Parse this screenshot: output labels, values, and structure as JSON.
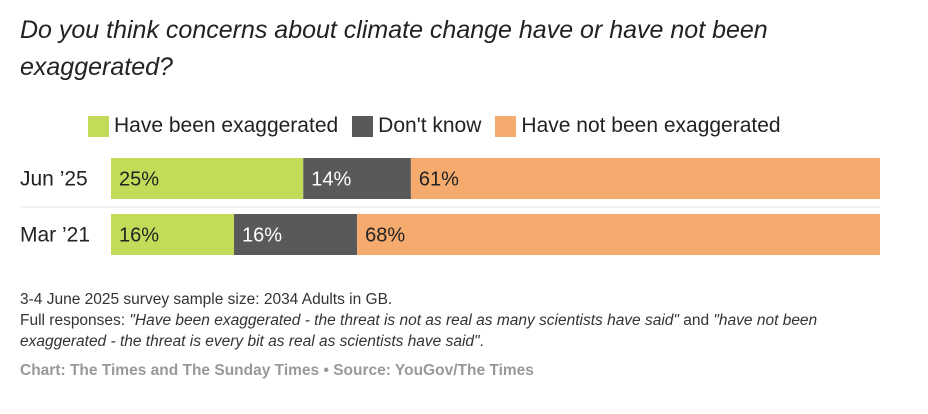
{
  "chart_data": {
    "type": "bar",
    "orientation": "horizontal",
    "stacked": true,
    "normalized": true,
    "title": "Do you think concerns about climate change have or have not been exaggerated?",
    "categories": [
      "Jun ’25",
      "Mar ’21"
    ],
    "series": [
      {
        "name": "Have been exaggerated",
        "color": "#c2dc5a",
        "values": [
          25,
          16
        ],
        "labels": [
          "25%",
          "16%"
        ]
      },
      {
        "name": "Don't know",
        "color": "#595959",
        "values": [
          14,
          16
        ],
        "labels": [
          "14%",
          "16%"
        ]
      },
      {
        "name": "Have not been exaggerated",
        "color": "#f5ab6e",
        "values": [
          61,
          68
        ],
        "labels": [
          "61%",
          "68%"
        ]
      }
    ],
    "xlim": [
      0,
      100
    ],
    "legend_position": "top"
  },
  "footer": {
    "sample": "3-4 June 2025 survey sample size: 2034 Adults in GB.",
    "responses_prefix": "Full responses: ",
    "quote1": "\"Have been exaggerated - the threat is not as real as many scientists have said\"",
    "and": " and ",
    "quote2": "\"have not been exaggerated - the threat is every bit as real as scientists have said\"",
    "end": "."
  },
  "credits": "Chart: The Times and The Sunday Times • Source: YouGov/The Times"
}
